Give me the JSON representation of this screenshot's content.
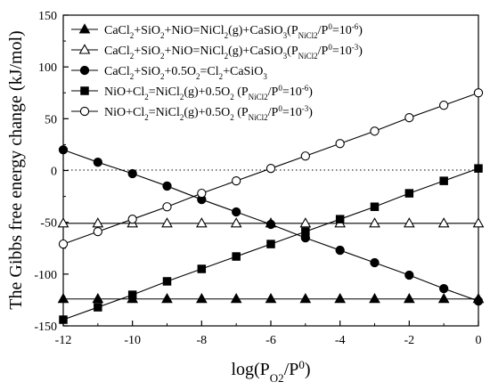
{
  "chart_data": {
    "type": "line",
    "title": "",
    "xlabel": {
      "main": "log(P",
      "sub": "O2",
      "mid": "/P",
      "sup": "0",
      "end": ")"
    },
    "ylabel": "The Gibbs free energy change (kJ/mol)",
    "xlim": [
      -12,
      0
    ],
    "ylim": [
      -150,
      150
    ],
    "xticks": [
      -12,
      -10,
      -8,
      -6,
      -4,
      -2,
      0
    ],
    "yticks": [
      -150,
      -100,
      -50,
      0,
      50,
      100,
      150
    ],
    "xtick_labels": [
      "-12",
      "-10",
      "-8",
      "-6",
      "-4",
      "-2",
      "0"
    ],
    "ytick_labels": [
      "-150",
      "-100",
      "-50",
      "0",
      "50",
      "100",
      "150"
    ],
    "zero_line": {
      "y": 0,
      "style": "dotted"
    },
    "grid": false,
    "legend_position": "top-left",
    "series": [
      {
        "name": "CaCl2+SiO2+NiO=NiCl2(g)+CaSiO3(PNiCl2/P0=10-6)",
        "marker": "filled-triangle",
        "legend_parts": [
          [
            "CaCl",
            "n"
          ],
          [
            "2",
            "sub"
          ],
          [
            "+SiO",
            "n"
          ],
          [
            "2",
            "sub"
          ],
          [
            "+NiO=NiCl",
            "n"
          ],
          [
            "2",
            "sub"
          ],
          [
            "(g)+CaSiO",
            "n"
          ],
          [
            "3",
            "sub"
          ],
          [
            "(P",
            "n"
          ],
          [
            "NiCl2",
            "sub"
          ],
          [
            "/P",
            "n"
          ],
          [
            "0",
            "sup"
          ],
          [
            "=10",
            "n"
          ],
          [
            "-6",
            "sup"
          ],
          [
            ")",
            "n"
          ]
        ],
        "x": [
          -12,
          -11,
          -10,
          -9,
          -8,
          -7,
          -6,
          -5,
          -4,
          -3,
          -2,
          -1,
          0
        ],
        "y": [
          -124,
          -124,
          -124,
          -124,
          -124,
          -124,
          -124,
          -124,
          -124,
          -124,
          -124,
          -124,
          -124
        ]
      },
      {
        "name": "CaCl2+SiO2+NiO=NiCl2(g)+CaSiO3(PNiCl2/P0=10-3)",
        "marker": "open-triangle",
        "legend_parts": [
          [
            "CaCl",
            "n"
          ],
          [
            "2",
            "sub"
          ],
          [
            "+SiO",
            "n"
          ],
          [
            "2",
            "sub"
          ],
          [
            "+NiO=NiCl",
            "n"
          ],
          [
            "2",
            "sub"
          ],
          [
            "(g)+CaSiO",
            "n"
          ],
          [
            "3",
            "sub"
          ],
          [
            "(P",
            "n"
          ],
          [
            "NiCl2",
            "sub"
          ],
          [
            "/P",
            "n"
          ],
          [
            "0",
            "sup"
          ],
          [
            "=10",
            "n"
          ],
          [
            "-3",
            "sup"
          ],
          [
            ")",
            "n"
          ]
        ],
        "x": [
          -12,
          -11,
          -10,
          -9,
          -8,
          -7,
          -6,
          -5,
          -4,
          -3,
          -2,
          -1,
          0
        ],
        "y": [
          -51,
          -51,
          -51,
          -51,
          -51,
          -51,
          -51,
          -51,
          -51,
          -51,
          -51,
          -51,
          -51
        ]
      },
      {
        "name": "CaCl2+SiO2+0.5O2=Cl2+CaSiO3",
        "marker": "filled-circle",
        "legend_parts": [
          [
            "CaCl",
            "n"
          ],
          [
            "2",
            "sub"
          ],
          [
            "+SiO",
            "n"
          ],
          [
            "2",
            "sub"
          ],
          [
            "+0.5O",
            "n"
          ],
          [
            "2",
            "sub"
          ],
          [
            "=Cl",
            "n"
          ],
          [
            "2",
            "sub"
          ],
          [
            "+CaSiO",
            "n"
          ],
          [
            "3",
            "sub"
          ]
        ],
        "x": [
          -12,
          -11,
          -10,
          -9,
          -8,
          -7,
          -6,
          -5,
          -4,
          -3,
          -2,
          -1,
          0
        ],
        "y": [
          20,
          8,
          -3,
          -15,
          -28,
          -40,
          -52,
          -65,
          -77,
          -89,
          -101,
          -114,
          -126
        ]
      },
      {
        "name": "NiO+Cl2=NiCl2(g)+0.5O2 (PNiCl2/P0=10-6)",
        "marker": "filled-square",
        "legend_parts": [
          [
            "NiO+Cl",
            "n"
          ],
          [
            "2",
            "sub"
          ],
          [
            "=NiCl",
            "n"
          ],
          [
            "2",
            "sub"
          ],
          [
            "(g)+0.5O",
            "n"
          ],
          [
            "2",
            "sub"
          ],
          [
            " (P",
            "n"
          ],
          [
            "NiCl2",
            "sub"
          ],
          [
            "/P",
            "n"
          ],
          [
            "0",
            "sup"
          ],
          [
            "=10",
            "n"
          ],
          [
            "-6",
            "sup"
          ],
          [
            ")",
            "n"
          ]
        ],
        "x": [
          -12,
          -11,
          -10,
          -9,
          -8,
          -7,
          -6,
          -5,
          -4,
          -3,
          -2,
          -1,
          0
        ],
        "y": [
          -144,
          -132,
          -120,
          -107,
          -95,
          -83,
          -71,
          -59,
          -47,
          -35,
          -22,
          -10,
          2
        ]
      },
      {
        "name": "NiO+Cl2=NiCl2(g)+0.5O2 (PNiCl2/P0=10-3)",
        "marker": "open-circle",
        "legend_parts": [
          [
            "NiO+Cl",
            "n"
          ],
          [
            "2",
            "sub"
          ],
          [
            "=NiCl",
            "n"
          ],
          [
            "2",
            "sub"
          ],
          [
            "(g)+0.5O",
            "n"
          ],
          [
            "2",
            "sub"
          ],
          [
            " (P",
            "n"
          ],
          [
            "NiCl2",
            "sub"
          ],
          [
            "/P",
            "n"
          ],
          [
            "0",
            "sup"
          ],
          [
            "=10",
            "n"
          ],
          [
            "-3",
            "sup"
          ],
          [
            ")",
            "n"
          ]
        ],
        "x": [
          -12,
          -11,
          -10,
          -9,
          -8,
          -7,
          -6,
          -5,
          -4,
          -3,
          -2,
          -1,
          0
        ],
        "y": [
          -71,
          -59,
          -47,
          -35,
          -22,
          -10,
          2,
          14,
          26,
          38,
          51,
          63,
          75
        ]
      }
    ]
  }
}
